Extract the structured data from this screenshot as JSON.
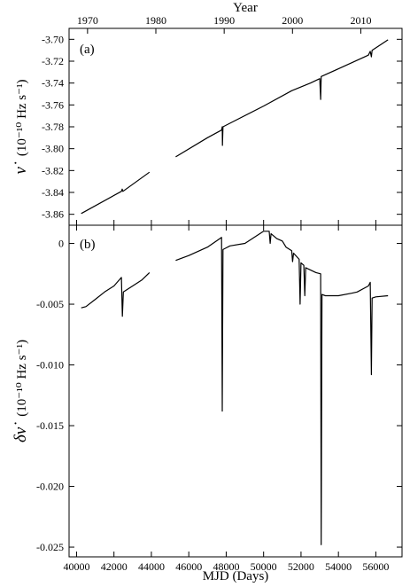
{
  "chart_data": [
    {
      "id": "a",
      "type": "line",
      "panel_label": "(a)",
      "xlabel": "MJD  (Days)",
      "ylabel_symbol": "ν̇",
      "ylabel_units": "(10⁻¹⁰ Hz s⁻¹)",
      "ylim": [
        -3.87,
        -3.69
      ],
      "yticks": [
        -3.86,
        -3.84,
        -3.82,
        -3.8,
        -3.78,
        -3.76,
        -3.74,
        -3.72,
        -3.7
      ],
      "ytick_labels": [
        "-3.86",
        "-3.84",
        "-3.82",
        "-3.80",
        "-3.78",
        "-3.76",
        "-3.74",
        "-3.72",
        "-3.70"
      ],
      "xlim": [
        39600,
        57400
      ],
      "top_axis": {
        "label": "Year",
        "ticks": [
          1970,
          1980,
          1990,
          2000,
          2010
        ],
        "tick_labels": [
          "1970",
          "1980",
          "1990",
          "2000",
          "2010"
        ],
        "tick_mjd": [
          40587,
          44239,
          47892,
          51544,
          55197
        ]
      },
      "grid": false,
      "series": [
        {
          "segments": [
            [
              [
                40250,
                -3.8593
              ],
              [
                42400,
                -3.839
              ],
              [
                42440,
                -3.837
              ],
              [
                42480,
                -3.839
              ],
              [
                43900,
                -3.8215
              ]
            ],
            [
              [
                45300,
                -3.8075
              ],
              [
                47000,
                -3.79
              ],
              [
                47750,
                -3.783
              ],
              [
                47790,
                -3.78
              ],
              [
                47800,
                -3.797
              ],
              [
                47830,
                -3.78
              ],
              [
                50000,
                -3.761
              ],
              [
                51500,
                -3.747
              ],
              [
                52500,
                -3.74
              ],
              [
                53000,
                -3.736
              ],
              [
                53050,
                -3.755
              ],
              [
                53080,
                -3.734
              ],
              [
                54000,
                -3.727
              ],
              [
                55600,
                -3.7145
              ],
              [
                55700,
                -3.711
              ],
              [
                55760,
                -3.716
              ],
              [
                55800,
                -3.71
              ],
              [
                56650,
                -3.7005
              ]
            ]
          ]
        }
      ]
    },
    {
      "id": "b",
      "type": "line",
      "panel_label": "(b)",
      "xlabel": "MJD  (Days)",
      "ylabel_symbol": "δν̇",
      "ylabel_units": "(10⁻¹⁰ Hz s⁻¹)",
      "ylim": [
        -0.0258,
        0.0015
      ],
      "yticks": [
        0,
        -0.005,
        -0.01,
        -0.015,
        -0.02,
        -0.025
      ],
      "ytick_labels": [
        "0",
        "-0.005",
        "-0.010",
        "-0.015",
        "-0.020",
        "-0.025"
      ],
      "xlim": [
        39600,
        57400
      ],
      "xticks": [
        40000,
        42000,
        44000,
        46000,
        48000,
        50000,
        52000,
        54000,
        56000
      ],
      "xtick_labels": [
        "40000",
        "42000",
        "44000",
        "46000",
        "48000",
        "50000",
        "52000",
        "54000",
        "56000"
      ],
      "grid": false,
      "series": [
        {
          "segments": [
            [
              [
                40250,
                -0.0053
              ],
              [
                40500,
                -0.0052
              ],
              [
                41000,
                -0.0046
              ],
              [
                41500,
                -0.004
              ],
              [
                42000,
                -0.0035
              ],
              [
                42400,
                -0.0028
              ],
              [
                42450,
                -0.006
              ],
              [
                42500,
                -0.004
              ],
              [
                43000,
                -0.0035
              ],
              [
                43500,
                -0.003
              ],
              [
                43900,
                -0.0024
              ]
            ],
            [
              [
                45300,
                -0.0014
              ],
              [
                46000,
                -0.001
              ],
              [
                47000,
                -0.0003
              ],
              [
                47750,
                0.0005
              ],
              [
                47790,
                -0.0138
              ],
              [
                47830,
                -0.0005
              ],
              [
                48200,
                -0.0002
              ],
              [
                49000,
                0.0
              ],
              [
                50000,
                0.001
              ],
              [
                50300,
                0.001
              ],
              [
                50350,
                0.0
              ],
              [
                50400,
                0.0008
              ],
              [
                50700,
                0.0004
              ],
              [
                51000,
                0.0002
              ],
              [
                51200,
                -0.0003
              ],
              [
                51500,
                -0.0006
              ],
              [
                51550,
                -0.0015
              ],
              [
                51600,
                -0.0008
              ],
              [
                51900,
                -0.0013
              ],
              [
                51950,
                -0.005
              ],
              [
                52000,
                -0.0016
              ],
              [
                52150,
                -0.0018
              ],
              [
                52200,
                -0.0043
              ],
              [
                52250,
                -0.002
              ],
              [
                52800,
                -0.0024
              ],
              [
                53050,
                -0.0025
              ],
              [
                53080,
                -0.0248
              ],
              [
                53120,
                -0.0042
              ],
              [
                53300,
                -0.0043
              ],
              [
                54000,
                -0.0043
              ],
              [
                54700,
                -0.0041
              ],
              [
                55000,
                -0.004
              ],
              [
                55600,
                -0.0035
              ],
              [
                55700,
                -0.0032
              ],
              [
                55760,
                -0.0108
              ],
              [
                55800,
                -0.0045
              ],
              [
                56000,
                -0.0044
              ],
              [
                56650,
                -0.0043
              ]
            ]
          ]
        }
      ]
    }
  ]
}
